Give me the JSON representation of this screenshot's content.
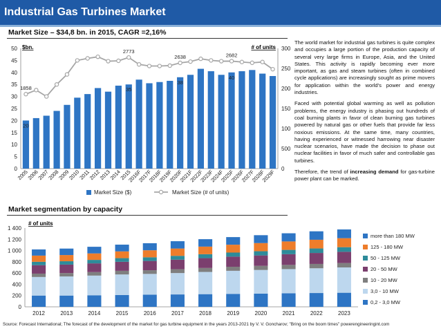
{
  "header": {
    "title": "Industrial Gas Turbines Market",
    "chart1_heading": "Market Size – $34,8 bn. in 2015, CAGR =2,16%",
    "chart2_heading": "Market segmentation by capacity"
  },
  "text": {
    "p1": "The world market for industrial gas turbines is quite complex and occupies a large portion of the production capacity of several very large firms in Europe, Asia, and the United States. This activity is rapidly becoming ever more important, as gas and steam turbines (often in combined cycle applications) are increasingly sought as prime movers for application within the world's power and energy industries.",
    "p2": "Faced with potential global warming as well as pollution problems, the energy industry is phasing out hundreds of coal burning plants in favor of clean burning gas turbines powered by natural gas or other fuels that provide far less noxious emissions. At the same time, many countries, having experienced or witnessed harrowing near disaster nuclear scenarios, have made the decision to phase out nuclear facilities in favor of much safer and controllable gas turbines.",
    "p3_before": "Therefore, the trend of ",
    "p3_bold": "increasing demand",
    "p3_after": " for gas-turbine power plant can be marked."
  },
  "source": "Source: Forecast International; The forecast of the development of the market for gas turbine equipment in the years 2013-2021 by V. V. Goncharov; \"Bring on the boom times\" powerengineeringint.com",
  "colors": {
    "title_bar": "#1f5aa6",
    "bar_blue": "#2e75c4",
    "line_grey": "#a6a6a6",
    "segments": [
      "#2e75c4",
      "#bdd7ee",
      "#7f7f7f",
      "#7b3f6e",
      "#2e8b9a",
      "#ee7d2b",
      "#2e75c4"
    ]
  },
  "chart_data": [
    {
      "type": "bar+line",
      "title": "Market Size – $34,8 bn. in 2015, CAGR =2,16%",
      "left_axis_label": "$bn.",
      "right_axis_label": "# of units",
      "categories": [
        "2005",
        "2006",
        "2007",
        "2008",
        "2009",
        "2010",
        "2011",
        "2012",
        "2013",
        "2014",
        "2015",
        "2016F",
        "2017F",
        "2018F",
        "2019F",
        "2020F",
        "2021F",
        "2022F",
        "2023F",
        "2024F",
        "2025F",
        "2026F",
        "2027F",
        "2028F",
        "2029F"
      ],
      "series": [
        {
          "name": "Market Size ($)",
          "kind": "bar",
          "axis": "left",
          "values": [
            20,
            21,
            22,
            24,
            26.5,
            29.5,
            31,
            33.5,
            32,
            34.5,
            35,
            37,
            35.5,
            36,
            36.5,
            38,
            39,
            41.5,
            40.5,
            39,
            40,
            40.5,
            41,
            39.5,
            38.5
          ]
        },
        {
          "name": "Market Size (# of units)",
          "kind": "line",
          "axis": "right",
          "values": [
            1858,
            1960,
            1800,
            2100,
            2350,
            2700,
            2750,
            2790,
            2680,
            2690,
            2773,
            2600,
            2560,
            2560,
            2570,
            2638,
            2670,
            2740,
            2700,
            2680,
            2682,
            2660,
            2640,
            2660,
            2480
          ]
        }
      ],
      "data_labels": [
        {
          "series": 0,
          "index": 0,
          "text": "20"
        },
        {
          "series": 0,
          "index": 10,
          "text": "35"
        },
        {
          "series": 0,
          "index": 15,
          "text": "38"
        },
        {
          "series": 0,
          "index": 20,
          "text": "40"
        },
        {
          "series": 1,
          "index": 0,
          "text": "1858"
        },
        {
          "series": 1,
          "index": 10,
          "text": "2773"
        },
        {
          "series": 1,
          "index": 15,
          "text": "2638"
        },
        {
          "series": 1,
          "index": 20,
          "text": "2682"
        }
      ],
      "left_ylim": [
        0,
        50
      ],
      "left_ticks": [
        "0",
        "5",
        "10",
        "15",
        "20",
        "25",
        "30",
        "35",
        "40",
        "45",
        "50"
      ],
      "right_ylim": [
        0,
        3000
      ],
      "right_ticks": [
        "0",
        "500",
        "1000",
        "1500",
        "2000",
        "2500",
        "3000"
      ],
      "grid": false,
      "legend": "bottom"
    },
    {
      "type": "stacked-bar",
      "title": "Market segmentation by capacity",
      "ylabel": "# of units",
      "categories": [
        "2012",
        "2013",
        "2014",
        "2015",
        "2016",
        "2017",
        "2018",
        "2019",
        "2020",
        "2021",
        "2022",
        "2023"
      ],
      "series": [
        {
          "name": "0,2 - 3,0 MW",
          "values": [
            200,
            200,
            205,
            210,
            215,
            220,
            225,
            230,
            235,
            240,
            245,
            250
          ]
        },
        {
          "name": "3,0 - 10 MW",
          "values": [
            330,
            340,
            350,
            365,
            370,
            380,
            395,
            410,
            420,
            430,
            440,
            450
          ]
        },
        {
          "name": "10 - 20 MW",
          "values": [
            60,
            60,
            62,
            65,
            65,
            68,
            70,
            72,
            73,
            75,
            77,
            78
          ]
        },
        {
          "name": "20 - 50 MW",
          "values": [
            150,
            150,
            155,
            160,
            165,
            170,
            175,
            180,
            185,
            190,
            195,
            200
          ]
        },
        {
          "name": "50 - 125 MW",
          "values": [
            60,
            60,
            62,
            65,
            65,
            68,
            70,
            72,
            75,
            77,
            80,
            82
          ]
        },
        {
          "name": "125 - 180 MW",
          "values": [
            110,
            110,
            115,
            120,
            125,
            130,
            135,
            140,
            145,
            150,
            155,
            160
          ]
        },
        {
          "name": "more than 180 MW",
          "values": [
            110,
            115,
            118,
            120,
            125,
            130,
            132,
            135,
            140,
            145,
            150,
            155
          ]
        }
      ],
      "ylim": [
        0,
        1400
      ],
      "y_ticks": [
        "0",
        "200",
        "400",
        "600",
        "800",
        "1 000",
        "1 200",
        "1 400"
      ],
      "grid": false,
      "legend": "right"
    }
  ]
}
